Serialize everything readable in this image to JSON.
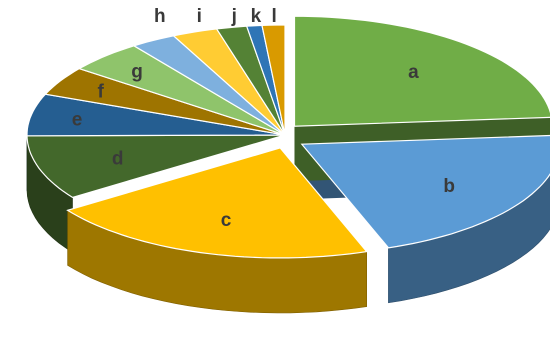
{
  "chart_data": {
    "type": "pie",
    "style": "3d-exploded",
    "categories": [
      "a",
      "b",
      "c",
      "d",
      "e",
      "f",
      "g",
      "h",
      "i",
      "j",
      "k",
      "l"
    ],
    "values": [
      25.0,
      22.0,
      22.0,
      10.0,
      6.5,
      4.5,
      5.0,
      3.0,
      3.0,
      2.0,
      1.0,
      1.5
    ],
    "colors": [
      "#70AD47",
      "#5B9BD5",
      "#FFC000",
      "#43682B",
      "#255E91",
      "#9E7400",
      "#8FC46B",
      "#7EB0DE",
      "#FFCC33",
      "#548235",
      "#2E75B6",
      "#D99A00"
    ],
    "exploded": [
      "a",
      "b",
      "c"
    ],
    "title": "",
    "legend": "none",
    "data_labels": "category-name-inside"
  }
}
